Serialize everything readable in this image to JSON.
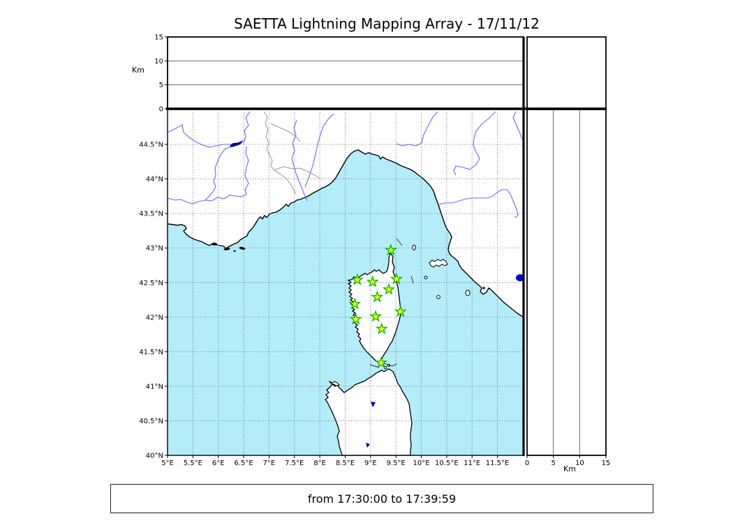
{
  "title": "SAETTA Lightning Mapping Array - 17/11/12",
  "footer": {
    "text": "from 17:30:00 to 17:39:59"
  },
  "chart_data": {
    "type": "scatter",
    "title": "SAETTA Lightning Mapping Array - 17/11/12",
    "subtitle_time_window": {
      "from": "17:30:00",
      "to": "17:39:59"
    },
    "layout_hint": "three-panel LMA plot: altitude-vs-longitude (top), lon/lat map (main), altitude-vs-latitude (right); grid dotted on map, solid in altitude panels; no lightning source points plotted in this time window",
    "panels": {
      "altitude_top": {
        "ylabel": "Km",
        "ylim": [
          0,
          15
        ],
        "ticks": [
          {
            "v": 0,
            "label": "0"
          },
          {
            "v": 5,
            "label": "5"
          },
          {
            "v": 10,
            "label": "10"
          },
          {
            "v": 15,
            "label": "15"
          }
        ],
        "gridlines_at": [
          5,
          10
        ],
        "points": []
      },
      "map": {
        "xlim_lon_east_deg": [
          5,
          12
        ],
        "ylim_lat_north_deg": [
          40,
          45
        ],
        "grid_step_deg": 0.5,
        "xticks": [
          {
            "v": 5,
            "label": "5°E"
          },
          {
            "v": 5.5,
            "label": "5.5°E"
          },
          {
            "v": 6,
            "label": "6°E"
          },
          {
            "v": 6.5,
            "label": "6.5°E"
          },
          {
            "v": 7,
            "label": "7°E"
          },
          {
            "v": 7.5,
            "label": "7.5°E"
          },
          {
            "v": 8,
            "label": "8°E"
          },
          {
            "v": 8.5,
            "label": "8.5°E"
          },
          {
            "v": 9,
            "label": "9°E"
          },
          {
            "v": 9.5,
            "label": "9.5°E"
          },
          {
            "v": 10,
            "label": "10°E"
          },
          {
            "v": 10.5,
            "label": "10.5°E"
          },
          {
            "v": 11,
            "label": "11°E"
          },
          {
            "v": 11.5,
            "label": "11.5°E"
          }
        ],
        "yticks": [
          {
            "v": 44.5,
            "label": "44.5°N"
          },
          {
            "v": 44,
            "label": "44°N"
          },
          {
            "v": 43.5,
            "label": "43.5°N"
          },
          {
            "v": 43,
            "label": "43°N"
          },
          {
            "v": 42.5,
            "label": "42.5°N"
          },
          {
            "v": 42,
            "label": "42°N"
          },
          {
            "v": 41.5,
            "label": "41.5°N"
          },
          {
            "v": 41,
            "label": "41°N"
          },
          {
            "v": 40.5,
            "label": "40.5°N"
          },
          {
            "v": 40,
            "label": "40°N"
          }
        ],
        "points": []
      },
      "altitude_right": {
        "xlabel": "Km",
        "xlim": [
          0,
          15
        ],
        "ticks": [
          {
            "v": 0,
            "label": "0"
          },
          {
            "v": 5,
            "label": "5"
          },
          {
            "v": 10,
            "label": "10"
          },
          {
            "v": 15,
            "label": "15"
          }
        ],
        "gridlines_at": [
          5,
          10
        ],
        "points": []
      }
    },
    "lma_stations_lon_lat": [
      [
        9.4,
        42.97
      ],
      [
        8.74,
        42.54
      ],
      [
        9.04,
        42.51
      ],
      [
        9.51,
        42.55
      ],
      [
        9.36,
        42.4
      ],
      [
        9.13,
        42.29
      ],
      [
        8.69,
        42.19
      ],
      [
        9.59,
        42.08
      ],
      [
        9.1,
        42.01
      ],
      [
        8.71,
        41.97
      ],
      [
        9.22,
        41.83
      ],
      [
        9.21,
        41.34
      ]
    ],
    "blue_marker_lon_lat": [
      11.95,
      42.57
    ],
    "legend": "none",
    "colors": {
      "sea": "#b4ecfa",
      "land": "#ffffff",
      "coast": "#000000",
      "river": "#6b6bf0",
      "region_border": "#979797",
      "lake": "#000099",
      "blue_marker": "#0000cc",
      "station_fill": "#ffff00",
      "station_edge": "#00b400",
      "grid": "#5a5a5a"
    }
  }
}
